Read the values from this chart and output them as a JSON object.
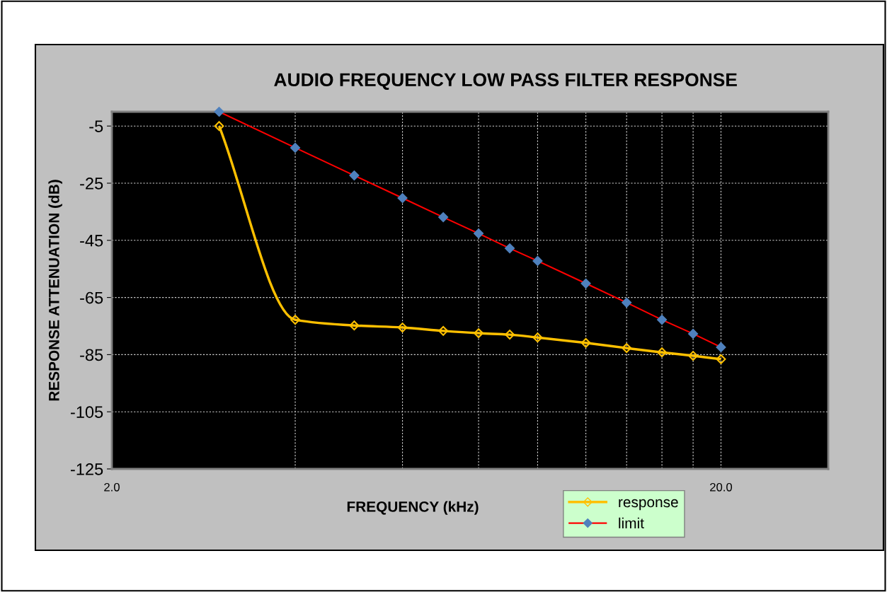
{
  "chart_data": {
    "type": "line",
    "title": "AUDIO FREQUENCY LOW PASS FILTER RESPONSE",
    "xlabel": "FREQUENCY (kHz)",
    "ylabel": "RESPONSE ATTENUATION (dB)",
    "x": [
      3,
      4,
      5,
      6,
      7,
      8,
      9,
      10,
      12,
      14,
      16,
      18,
      20
    ],
    "series": [
      {
        "name": "response",
        "color": "#ffc000",
        "marker": "diamond",
        "values": [
          -5,
          -72.8,
          -74.8,
          -75.5,
          -76.7,
          -77.5,
          -78,
          -79,
          -80.9,
          -82.7,
          -84.2,
          -85.4,
          -86.6
        ]
      },
      {
        "name": "limit",
        "color": "#ff0000",
        "marker": "diamond",
        "values": [
          0,
          -12.6,
          -22.3,
          -30.2,
          -36.9,
          -42.6,
          -47.8,
          -52.2,
          -60.1,
          -66.8,
          -72.8,
          -77.7,
          -82.4
        ]
      }
    ],
    "log": "x",
    "xlim": [
      2,
      30
    ],
    "xticks": [
      {
        "value": 2,
        "label": "2.0"
      },
      {
        "value": 4,
        "label": null
      },
      {
        "value": 6,
        "label": null
      },
      {
        "value": 8,
        "label": null
      },
      {
        "value": 10,
        "label": null
      },
      {
        "value": 12,
        "label": null
      },
      {
        "value": 14,
        "label": null
      },
      {
        "value": 16,
        "label": null
      },
      {
        "value": 18,
        "label": null
      },
      {
        "value": 20,
        "label": "20.0"
      }
    ],
    "ylim": [
      -125,
      0
    ],
    "yticks": [
      -125,
      -105,
      -85,
      -65,
      -45,
      -25,
      -5
    ],
    "grid": true,
    "legend": "bottom"
  }
}
